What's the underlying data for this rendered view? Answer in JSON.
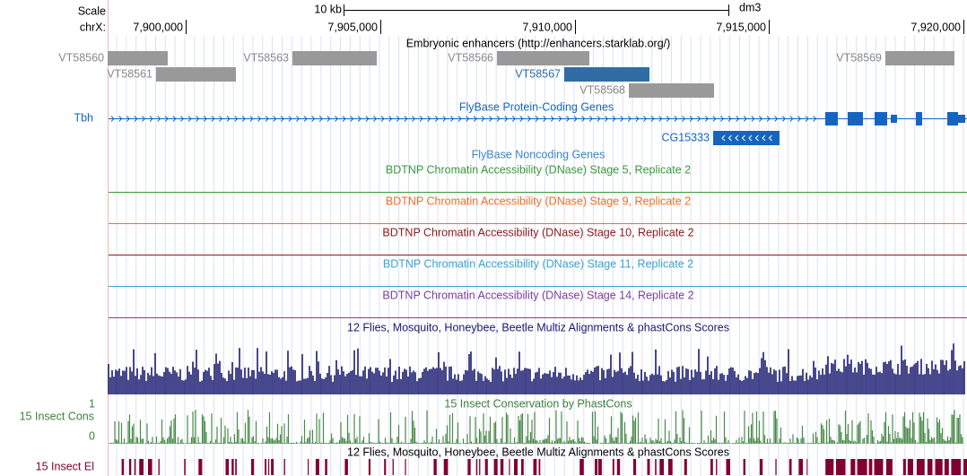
{
  "scale": {
    "label": "Scale",
    "bar": "10 kb",
    "assembly": "dm3"
  },
  "position": {
    "label": "chrX:",
    "ticks": [
      "7,900,000",
      "7,905,000",
      "7,910,000",
      "7,915,000",
      "7,920,000"
    ]
  },
  "enhancers": {
    "title": "Embryonic enhancers (http://enhancers.starklab.org/)",
    "items": [
      "VT58560",
      "VT58561",
      "VT58563",
      "VT58566",
      "VT58567",
      "VT58568",
      "VT58569"
    ]
  },
  "coding_genes": {
    "title": "FlyBase Protein-Coding Genes",
    "genes": [
      "Tbh",
      "CG15333"
    ]
  },
  "noncoding_genes": {
    "title": "FlyBase Noncoding Genes"
  },
  "dnase_tracks": [
    "BDTNP Chromatin Accessibility (DNase) Stage 5, Replicate 2",
    "BDTNP Chromatin Accessibility (DNase) Stage 9, Replicate 2",
    "BDTNP Chromatin Accessibility (DNase) Stage 10, Replicate 2",
    "BDTNP Chromatin Accessibility (DNase) Stage 11, Replicate 2",
    "BDTNP Chromatin Accessibility (DNase) Stage 14, Replicate 2"
  ],
  "multiz": {
    "title": "12 Flies, Mosquito, Honeybee, Beetle Multiz Alignments & phastCons Scores"
  },
  "phastcons": {
    "title": "15 Insect Conservation by PhastCons",
    "label": "15 Insect Cons",
    "max": "1",
    "min": "0"
  },
  "elements": {
    "title": "12 Flies, Mosquito, Honeybee, Beetle Multiz Alignments & phastCons Scores",
    "label": "15 Insect El"
  }
}
